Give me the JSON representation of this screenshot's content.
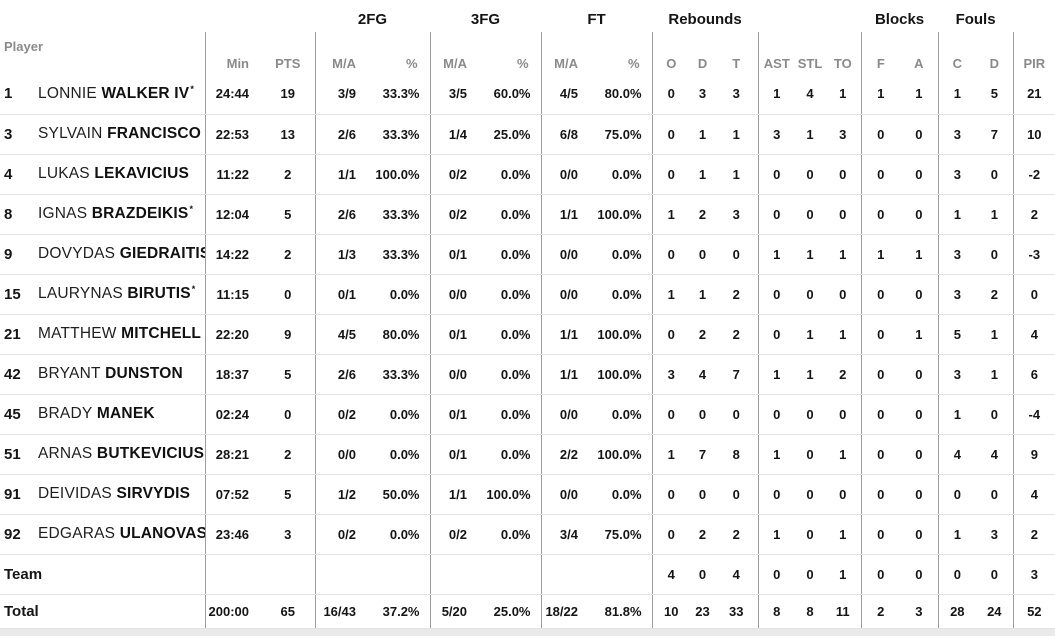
{
  "table": {
    "starter_mark": "*",
    "group_headers": {
      "fg2": "2FG",
      "fg3": "3FG",
      "ft": "FT",
      "rebounds": "Rebounds",
      "blocks": "Blocks",
      "fouls": "Fouls"
    },
    "columns": {
      "player": "Player",
      "min": "Min",
      "pts": "PTS",
      "ma": "M/A",
      "pct": "%",
      "o": "O",
      "d": "D",
      "t": "T",
      "ast": "AST",
      "stl": "STL",
      "to": "TO",
      "f": "F",
      "a": "A",
      "c": "C",
      "d2": "D",
      "pir": "PIR"
    },
    "players": [
      {
        "num": "1",
        "first": "LONNIE",
        "last": "WALKER IV",
        "starter": true,
        "min": "24:44",
        "pts": "19",
        "fg2": "3/9",
        "fg2p": "33.3%",
        "fg3": "3/5",
        "fg3p": "60.0%",
        "ft": "4/5",
        "ftp": "80.0%",
        "ro": "0",
        "rd": "3",
        "rt": "3",
        "ast": "1",
        "stl": "4",
        "to": "1",
        "bf": "1",
        "ba": "1",
        "fc": "1",
        "fd": "5",
        "pir": "21"
      },
      {
        "num": "3",
        "first": "SYLVAIN",
        "last": "FRANCISCO",
        "starter": false,
        "min": "22:53",
        "pts": "13",
        "fg2": "2/6",
        "fg2p": "33.3%",
        "fg3": "1/4",
        "fg3p": "25.0%",
        "ft": "6/8",
        "ftp": "75.0%",
        "ro": "0",
        "rd": "1",
        "rt": "1",
        "ast": "3",
        "stl": "1",
        "to": "3",
        "bf": "0",
        "ba": "0",
        "fc": "3",
        "fd": "7",
        "pir": "10"
      },
      {
        "num": "4",
        "first": "LUKAS",
        "last": "LEKAVICIUS",
        "starter": false,
        "min": "11:22",
        "pts": "2",
        "fg2": "1/1",
        "fg2p": "100.0%",
        "fg3": "0/2",
        "fg3p": "0.0%",
        "ft": "0/0",
        "ftp": "0.0%",
        "ro": "0",
        "rd": "1",
        "rt": "1",
        "ast": "0",
        "stl": "0",
        "to": "0",
        "bf": "0",
        "ba": "0",
        "fc": "3",
        "fd": "0",
        "pir": "-2"
      },
      {
        "num": "8",
        "first": "IGNAS",
        "last": "BRAZDEIKIS",
        "starter": true,
        "min": "12:04",
        "pts": "5",
        "fg2": "2/6",
        "fg2p": "33.3%",
        "fg3": "0/2",
        "fg3p": "0.0%",
        "ft": "1/1",
        "ftp": "100.0%",
        "ro": "1",
        "rd": "2",
        "rt": "3",
        "ast": "0",
        "stl": "0",
        "to": "0",
        "bf": "0",
        "ba": "0",
        "fc": "1",
        "fd": "1",
        "pir": "2"
      },
      {
        "num": "9",
        "first": "DOVYDAS",
        "last": "GIEDRAITIS",
        "starter": true,
        "min": "14:22",
        "pts": "2",
        "fg2": "1/3",
        "fg2p": "33.3%",
        "fg3": "0/1",
        "fg3p": "0.0%",
        "ft": "0/0",
        "ftp": "0.0%",
        "ro": "0",
        "rd": "0",
        "rt": "0",
        "ast": "1",
        "stl": "1",
        "to": "1",
        "bf": "1",
        "ba": "1",
        "fc": "3",
        "fd": "0",
        "pir": "-3"
      },
      {
        "num": "15",
        "first": "LAURYNAS",
        "last": "BIRUTIS",
        "starter": true,
        "min": "11:15",
        "pts": "0",
        "fg2": "0/1",
        "fg2p": "0.0%",
        "fg3": "0/0",
        "fg3p": "0.0%",
        "ft": "0/0",
        "ftp": "0.0%",
        "ro": "1",
        "rd": "1",
        "rt": "2",
        "ast": "0",
        "stl": "0",
        "to": "0",
        "bf": "0",
        "ba": "0",
        "fc": "3",
        "fd": "2",
        "pir": "0"
      },
      {
        "num": "21",
        "first": "MATTHEW",
        "last": "MITCHELL",
        "starter": false,
        "min": "22:20",
        "pts": "9",
        "fg2": "4/5",
        "fg2p": "80.0%",
        "fg3": "0/1",
        "fg3p": "0.0%",
        "ft": "1/1",
        "ftp": "100.0%",
        "ro": "0",
        "rd": "2",
        "rt": "2",
        "ast": "0",
        "stl": "1",
        "to": "1",
        "bf": "0",
        "ba": "1",
        "fc": "5",
        "fd": "1",
        "pir": "4"
      },
      {
        "num": "42",
        "first": "BRYANT",
        "last": "DUNSTON",
        "starter": false,
        "min": "18:37",
        "pts": "5",
        "fg2": "2/6",
        "fg2p": "33.3%",
        "fg3": "0/0",
        "fg3p": "0.0%",
        "ft": "1/1",
        "ftp": "100.0%",
        "ro": "3",
        "rd": "4",
        "rt": "7",
        "ast": "1",
        "stl": "1",
        "to": "2",
        "bf": "0",
        "ba": "0",
        "fc": "3",
        "fd": "1",
        "pir": "6"
      },
      {
        "num": "45",
        "first": "BRADY",
        "last": "MANEK",
        "starter": false,
        "min": "02:24",
        "pts": "0",
        "fg2": "0/2",
        "fg2p": "0.0%",
        "fg3": "0/1",
        "fg3p": "0.0%",
        "ft": "0/0",
        "ftp": "0.0%",
        "ro": "0",
        "rd": "0",
        "rt": "0",
        "ast": "0",
        "stl": "0",
        "to": "0",
        "bf": "0",
        "ba": "0",
        "fc": "1",
        "fd": "0",
        "pir": "-4"
      },
      {
        "num": "51",
        "first": "ARNAS",
        "last": "BUTKEVICIUS",
        "starter": false,
        "min": "28:21",
        "pts": "2",
        "fg2": "0/0",
        "fg2p": "0.0%",
        "fg3": "0/1",
        "fg3p": "0.0%",
        "ft": "2/2",
        "ftp": "100.0%",
        "ro": "1",
        "rd": "7",
        "rt": "8",
        "ast": "1",
        "stl": "0",
        "to": "1",
        "bf": "0",
        "ba": "0",
        "fc": "4",
        "fd": "4",
        "pir": "9"
      },
      {
        "num": "91",
        "first": "DEIVIDAS",
        "last": "SIRVYDIS",
        "starter": false,
        "min": "07:52",
        "pts": "5",
        "fg2": "1/2",
        "fg2p": "50.0%",
        "fg3": "1/1",
        "fg3p": "100.0%",
        "ft": "0/0",
        "ftp": "0.0%",
        "ro": "0",
        "rd": "0",
        "rt": "0",
        "ast": "0",
        "stl": "0",
        "to": "0",
        "bf": "0",
        "ba": "0",
        "fc": "0",
        "fd": "0",
        "pir": "4"
      },
      {
        "num": "92",
        "first": "EDGARAS",
        "last": "ULANOVAS",
        "starter": true,
        "min": "23:46",
        "pts": "3",
        "fg2": "0/2",
        "fg2p": "0.0%",
        "fg3": "0/2",
        "fg3p": "0.0%",
        "ft": "3/4",
        "ftp": "75.0%",
        "ro": "0",
        "rd": "2",
        "rt": "2",
        "ast": "1",
        "stl": "0",
        "to": "1",
        "bf": "0",
        "ba": "0",
        "fc": "1",
        "fd": "3",
        "pir": "2"
      }
    ],
    "team_row": {
      "label": "Team",
      "ro": "4",
      "rd": "0",
      "rt": "4",
      "ast": "0",
      "stl": "0",
      "to": "1",
      "bf": "0",
      "ba": "0",
      "fc": "0",
      "fd": "0",
      "pir": "3"
    },
    "total_row": {
      "label": "Total",
      "min": "200:00",
      "pts": "65",
      "fg2": "16/43",
      "fg2p": "37.2%",
      "fg3": "5/20",
      "fg3p": "25.0%",
      "ft": "18/22",
      "ftp": "81.8%",
      "ro": "10",
      "rd": "23",
      "rt": "33",
      "ast": "8",
      "stl": "8",
      "to": "11",
      "bf": "2",
      "ba": "3",
      "fc": "28",
      "fd": "24",
      "pir": "52"
    }
  }
}
